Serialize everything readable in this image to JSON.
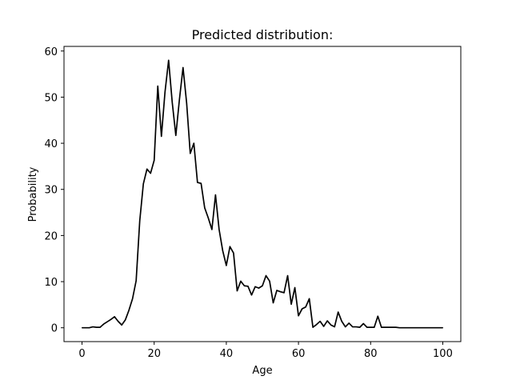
{
  "chart_data": {
    "type": "line",
    "title": "Predicted distribution:",
    "xlabel": "Age",
    "ylabel": "Probability",
    "xlim": [
      -5,
      105
    ],
    "ylim": [
      -3,
      61
    ],
    "xticks": [
      0,
      20,
      40,
      60,
      80,
      100
    ],
    "yticks": [
      0,
      10,
      20,
      30,
      40,
      50,
      60
    ],
    "grid": false,
    "series": [
      {
        "color": "#000000",
        "x": [
          0,
          1,
          2,
          3,
          4,
          5,
          6,
          7,
          8,
          9,
          10,
          11,
          12,
          13,
          14,
          15,
          16,
          17,
          18,
          19,
          20,
          21,
          22,
          23,
          24,
          25,
          26,
          27,
          28,
          29,
          30,
          31,
          32,
          33,
          34,
          35,
          36,
          37,
          38,
          39,
          40,
          41,
          42,
          43,
          44,
          45,
          46,
          47,
          48,
          49,
          50,
          51,
          52,
          53,
          54,
          55,
          56,
          57,
          58,
          59,
          60,
          61,
          62,
          63,
          64,
          65,
          66,
          67,
          68,
          69,
          70,
          71,
          72,
          73,
          74,
          75,
          76,
          77,
          78,
          79,
          80,
          81,
          82,
          83,
          84,
          85,
          86,
          87,
          88,
          89,
          90,
          91,
          92,
          93,
          94,
          95,
          96,
          97,
          98,
          99,
          100
        ],
        "y": [
          0,
          0,
          0,
          0.2,
          0.1,
          0.1,
          0.8,
          1.3,
          1.8,
          2.4,
          1.4,
          0.6,
          1.7,
          3.8,
          6.3,
          10.2,
          23.2,
          31.2,
          34.4,
          33.5,
          36.3,
          52.4,
          41.5,
          51.1,
          58,
          48.9,
          41.7,
          49.5,
          56.4,
          48.7,
          37.8,
          40,
          31.5,
          31.3,
          26,
          23.8,
          21.3,
          28.8,
          21.3,
          16.7,
          13.5,
          17.6,
          16.2,
          8,
          10.1,
          9.1,
          9,
          7.1,
          8.9,
          8.6,
          9.1,
          11.3,
          10.1,
          5.4,
          8.1,
          7.8,
          7.6,
          11.3,
          5.1,
          8.7,
          2.6,
          4.1,
          4.5,
          6.3,
          0.1,
          0.7,
          1.4,
          0.3,
          1.5,
          0.6,
          0.2,
          3.4,
          1.4,
          0.2,
          1,
          0.2,
          0.2,
          0.1,
          0.9,
          0.1,
          0.1,
          0.1,
          2.5,
          0.1,
          0.1,
          0.1,
          0.1,
          0.1,
          0,
          0,
          0,
          0,
          0,
          0,
          0,
          0,
          0,
          0,
          0,
          0,
          0
        ]
      }
    ]
  }
}
